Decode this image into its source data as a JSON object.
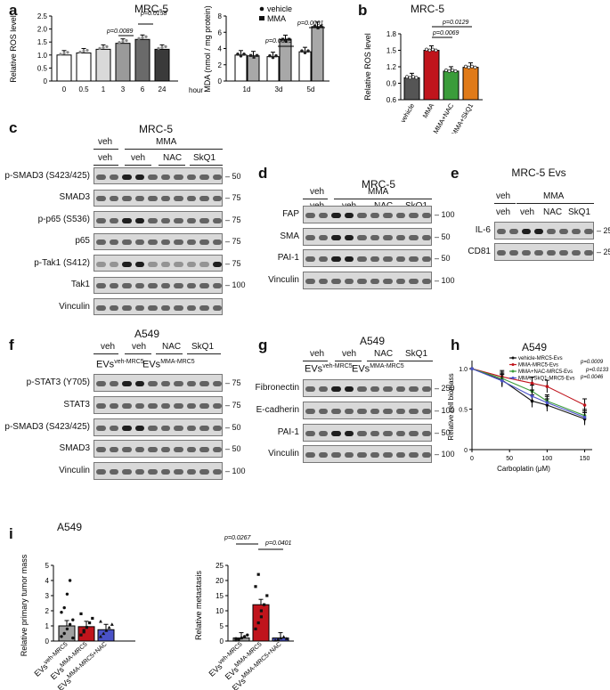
{
  "a": {
    "letter": "a",
    "title": "MRC-5",
    "left": {
      "ylabel": "Relative ROS level",
      "yticks": [
        "0",
        "0.5",
        "1.0",
        "1.5",
        "2.0",
        "2.5"
      ],
      "xticks": [
        "0",
        "0.5",
        "1",
        "3",
        "6",
        "24"
      ],
      "xunit": "hour",
      "pvals": [
        "p=0.0089",
        "p=0.0158"
      ]
    },
    "right": {
      "ylabel": "MDA (nmol / mg protein)",
      "yticks": [
        "0",
        "2",
        "4",
        "6",
        "8"
      ],
      "xticks": [
        "1d",
        "3d",
        "5d"
      ],
      "legend": [
        "vehicle",
        "MMA"
      ],
      "pvals": [
        "p=0.0015",
        "p=0.0001"
      ]
    }
  },
  "b": {
    "letter": "b",
    "title": "MRC-5",
    "ylabel": "Relative ROS level",
    "yticks": [
      "0.6",
      "0.9",
      "1.2",
      "1.5",
      "1.8"
    ],
    "xticks": [
      "vehicle",
      "MMA",
      "MMA+NAC",
      "MMA+SkQ1"
    ],
    "pvals": [
      "p=0.0069",
      "p=0.0129"
    ]
  },
  "c": {
    "letter": "c",
    "title": "MRC-5",
    "hdr_top": [
      "veh",
      "MMA"
    ],
    "hdr_bot": [
      "veh",
      "veh",
      "NAC",
      "SkQ1"
    ],
    "rows": [
      "p-SMAD3 (S423/425)",
      "SMAD3",
      "p-p65 (S536)",
      "p65",
      "p-Tak1 (S412)",
      "Tak1",
      "Vinculin"
    ],
    "mw": [
      "50",
      "75",
      "75",
      "75",
      "75",
      "100"
    ]
  },
  "d": {
    "letter": "d",
    "title": "MRC-5",
    "hdr_top": [
      "veh",
      "MMA"
    ],
    "hdr_bot": [
      "veh",
      "veh",
      "NAC",
      "SkQ1"
    ],
    "rows": [
      "FAP",
      "SMA",
      "PAI-1",
      "Vinculin"
    ],
    "mw": [
      "100",
      "50",
      "50",
      "100"
    ]
  },
  "e": {
    "letter": "e",
    "title": "MRC-5 Evs",
    "hdr_top": [
      "veh",
      "MMA"
    ],
    "hdr_bot": [
      "veh",
      "veh",
      "NAC",
      "SkQ1"
    ],
    "rows": [
      "IL-6",
      "CD81"
    ],
    "mw": [
      "25",
      "25"
    ]
  },
  "f": {
    "letter": "f",
    "title": "A549",
    "hdr_top": [
      "veh",
      "veh",
      "NAC",
      "SkQ1"
    ],
    "ev1": "EVs",
    "ev1_sup": "veh-MRC5",
    "ev2": "EVs",
    "ev2_sup": "MMA-MRC5",
    "rows": [
      "p-STAT3 (Y705)",
      "STAT3",
      "p-SMAD3 (S423/425)",
      "SMAD3",
      "Vinculin"
    ],
    "mw": [
      "75",
      "75",
      "50",
      "50",
      "100"
    ]
  },
  "g": {
    "letter": "g",
    "title": "A549",
    "hdr_top": [
      "veh",
      "veh",
      "NAC",
      "SkQ1"
    ],
    "ev1": "EVs",
    "ev1_sup": "veh-MRC5",
    "ev2": "EVs",
    "ev2_sup": "MMA-MRC5",
    "rows": [
      "Fibronectin",
      "E-cadherin",
      "PAI-1",
      "Vinculin"
    ],
    "mw": [
      "250",
      "100",
      "50",
      "100"
    ]
  },
  "h": {
    "letter": "h",
    "title": "A549",
    "ylabel": "Relative cell biomass",
    "xlabel": "Carboplatin (μM)",
    "yticks": [
      "0",
      "0.5",
      "1.0"
    ],
    "xticks": [
      "0",
      "50",
      "100",
      "150"
    ],
    "legend": [
      "vehicle-MRC5-Evs",
      "MMA-MRC5-Evs",
      "MMA+NAC-MRC5-Evs",
      "MMA+SkQ1-MRC5-Evs"
    ],
    "pvals": [
      "p=0.0009",
      "p=0.0133",
      "p=0.0046"
    ]
  },
  "i": {
    "letter": "i",
    "title": "A549",
    "left": {
      "ylabel": "Relative primary tumor mass",
      "yticks": [
        "0",
        "1",
        "2",
        "3",
        "4",
        "5"
      ]
    },
    "right": {
      "ylabel": "Relative metastasis",
      "yticks": [
        "0",
        "5",
        "10",
        "15",
        "20",
        "25"
      ],
      "pvals": [
        "p=0.0267",
        "p=0.0401"
      ]
    },
    "xticks": [
      "EVs",
      "EVs",
      "EVs"
    ],
    "xsups": [
      "veh-MRC5",
      "MMA-MRC5",
      "MMA-MRC5+NAC"
    ]
  },
  "colors": {
    "red": "#c0141c",
    "green": "#3a9c3a",
    "orange": "#e07a18",
    "blue": "#4a52c8",
    "grey": "#a7a7a7",
    "darkgrey": "#5a5a5a",
    "black": "#111111"
  },
  "chart_data": [
    {
      "type": "bar",
      "categories": [
        "0",
        "0.5",
        "1",
        "3",
        "6",
        "24"
      ],
      "values": [
        1.0,
        1.08,
        1.22,
        1.45,
        1.6,
        1.22
      ],
      "xlabel": "hour",
      "ylabel": "Relative ROS level",
      "ylim": [
        0,
        2.5
      ],
      "title": "MRC-5"
    },
    {
      "type": "bar",
      "categories": [
        "1d",
        "3d",
        "5d"
      ],
      "series": [
        {
          "name": "vehicle",
          "values": [
            3.2,
            3.0,
            3.6
          ]
        },
        {
          "name": "MMA",
          "values": [
            3.1,
            5.1,
            6.7
          ]
        }
      ],
      "ylabel": "MDA (nmol / mg protein)",
      "ylim": [
        0,
        8
      ]
    },
    {
      "type": "bar",
      "categories": [
        "vehicle",
        "MMA",
        "MMA+NAC",
        "MMA+SkQ1"
      ],
      "values": [
        1.0,
        1.5,
        1.12,
        1.19
      ],
      "ylabel": "Relative ROS level",
      "ylim": [
        0.6,
        1.8
      ],
      "title": "MRC-5"
    },
    {
      "type": "line",
      "x": [
        0,
        40,
        80,
        100,
        150
      ],
      "series": [
        {
          "name": "vehicle-MRC5-Evs",
          "values": [
            1.0,
            0.86,
            0.6,
            0.55,
            0.38
          ]
        },
        {
          "name": "MMA-MRC5-Evs",
          "values": [
            1.0,
            0.9,
            0.82,
            0.78,
            0.55
          ]
        },
        {
          "name": "MMA+NAC-MRC5-Evs",
          "values": [
            1.0,
            0.88,
            0.72,
            0.6,
            0.42
          ]
        },
        {
          "name": "MMA+SkQ1-MRC5-Evs",
          "values": [
            1.0,
            0.85,
            0.66,
            0.58,
            0.4
          ]
        }
      ],
      "xlabel": "Carboplatin (μM)",
      "ylabel": "Relative cell biomass",
      "ylim": [
        0,
        1.1
      ],
      "title": "A549"
    },
    {
      "type": "bar",
      "categories": [
        "EVs veh-MRC5",
        "EVs MMA-MRC5",
        "EVs MMA-MRC5+NAC"
      ],
      "values": [
        1.0,
        0.95,
        0.75
      ],
      "ylabel": "Relative primary tumor mass",
      "ylim": [
        0,
        5
      ]
    },
    {
      "type": "bar",
      "categories": [
        "EVs veh-MRC5",
        "EVs MMA-MRC5",
        "EVs MMA-MRC5+NAC"
      ],
      "values": [
        1.0,
        12.0,
        1.0
      ],
      "ylabel": "Relative metastasis",
      "ylim": [
        0,
        25
      ]
    }
  ]
}
